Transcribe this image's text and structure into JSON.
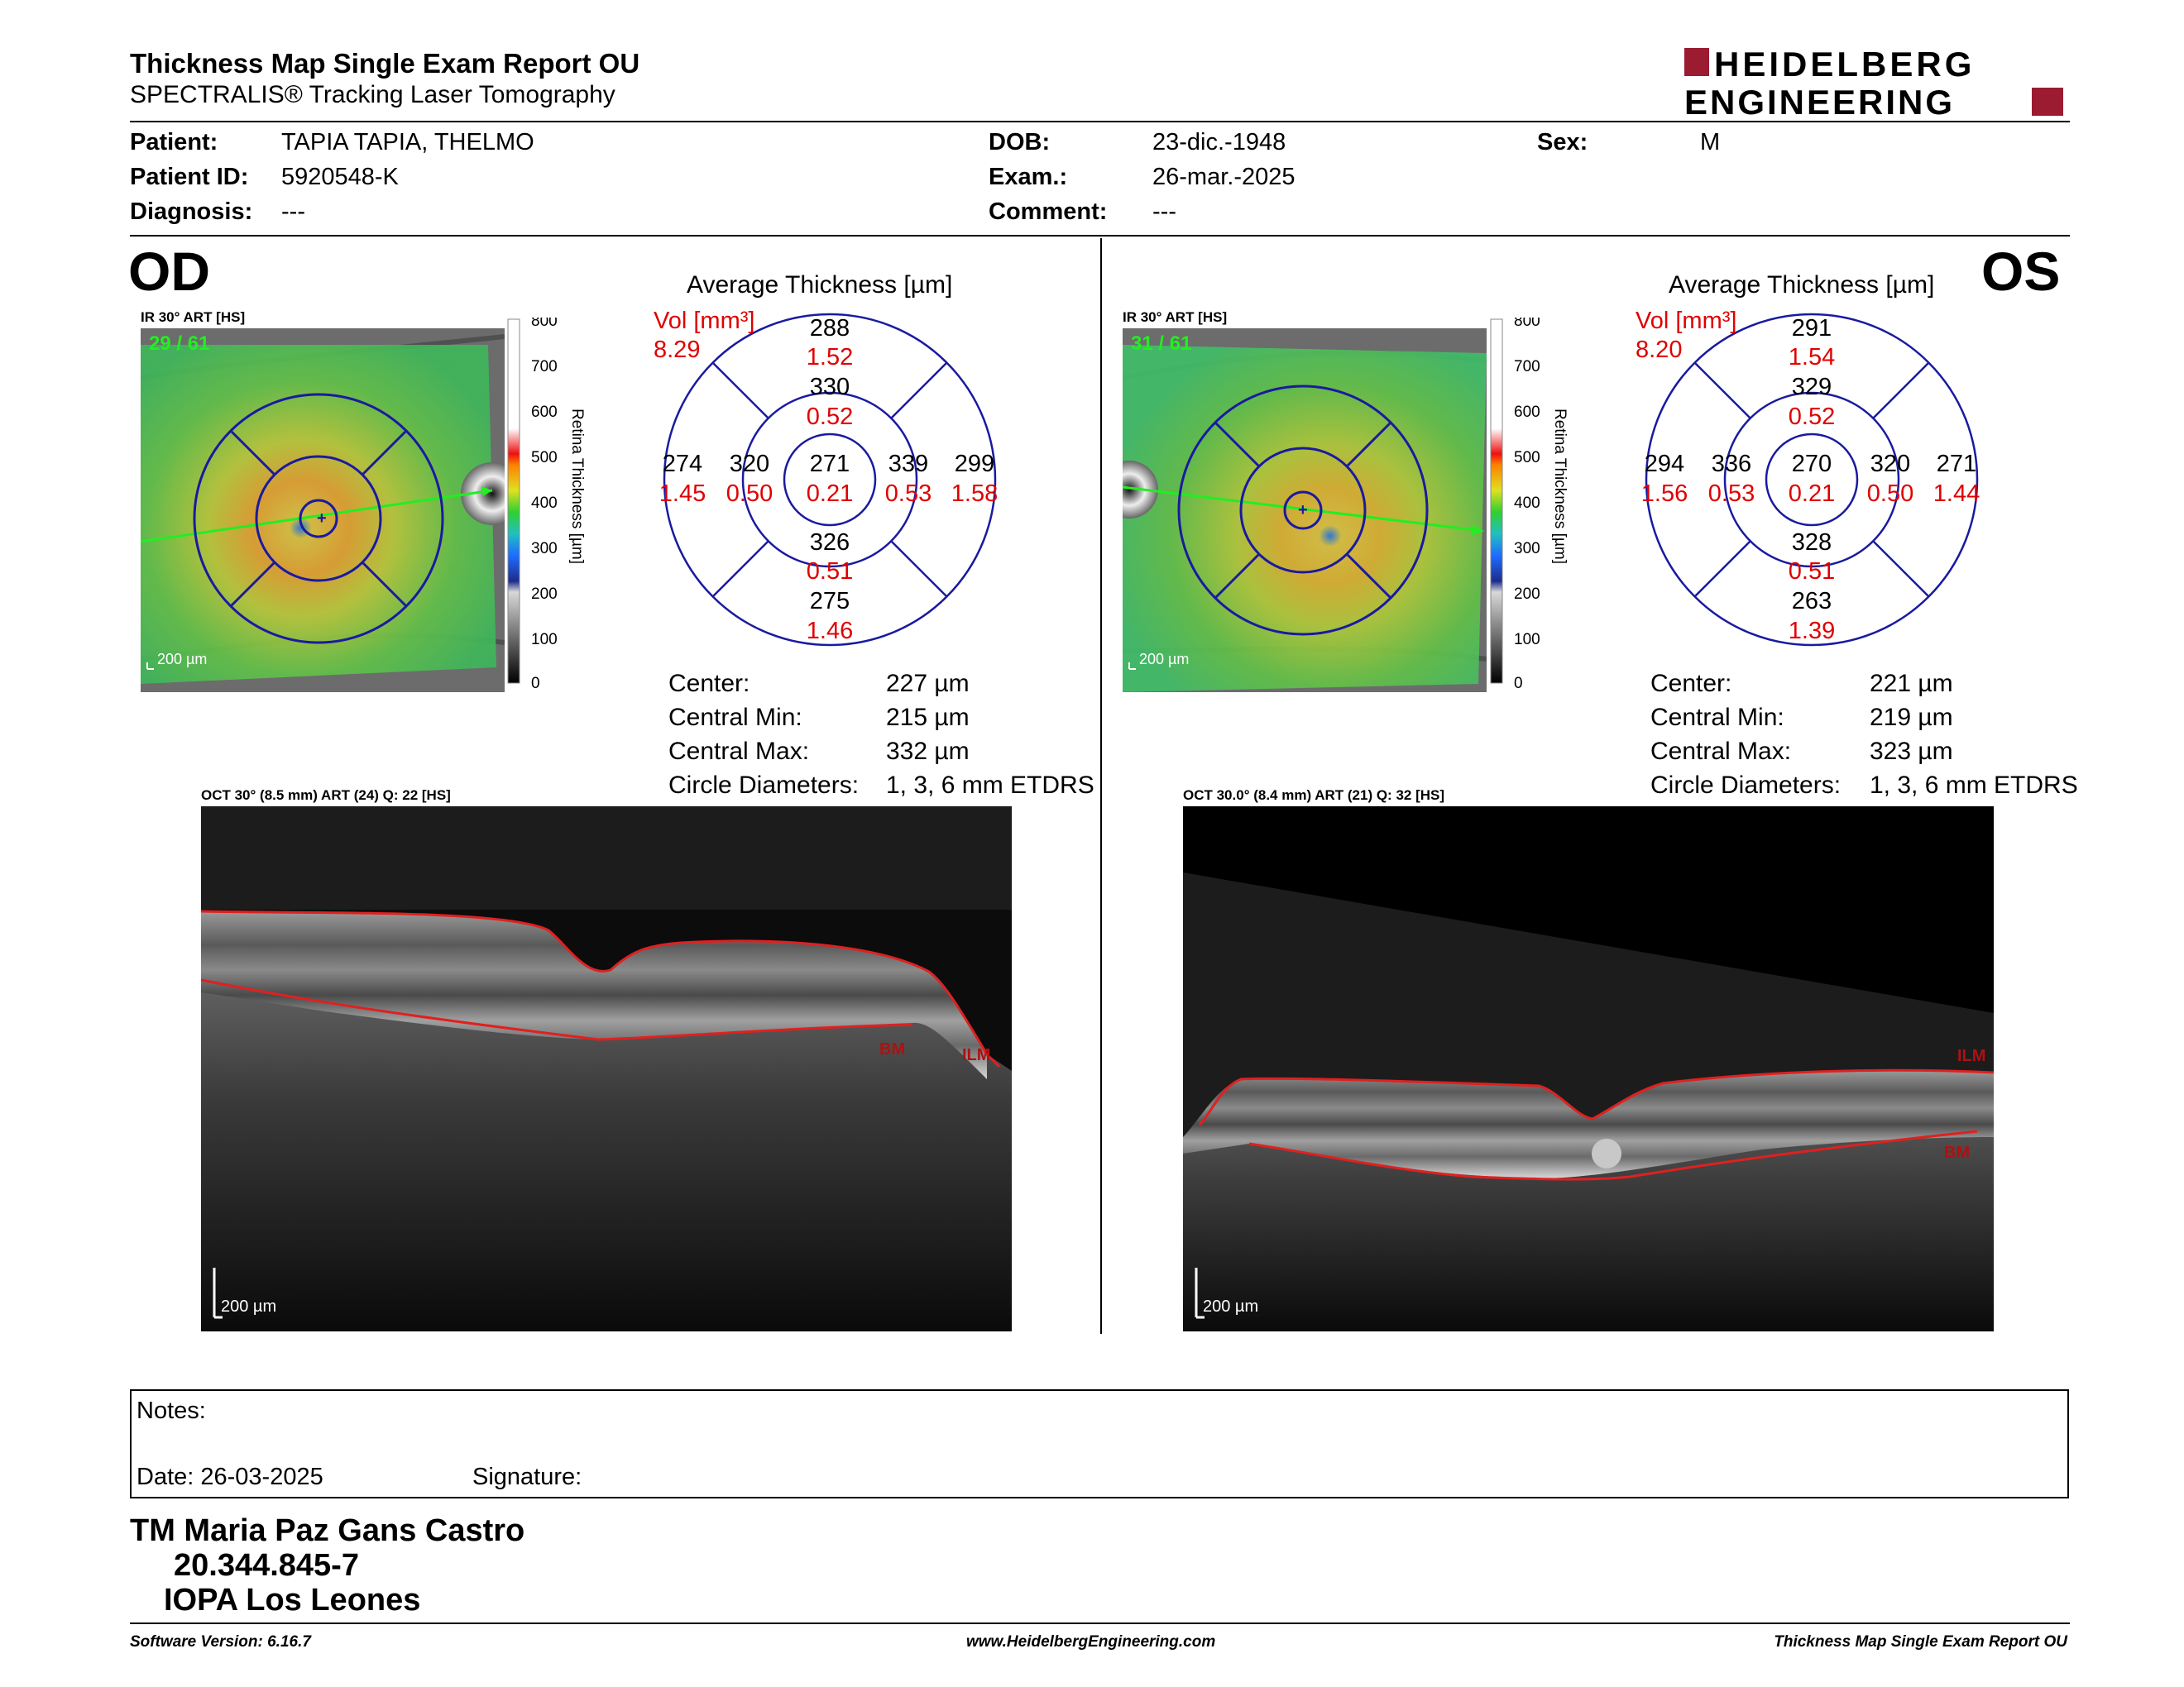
{
  "header": {
    "title": "Thickness Map Single Exam Report OU",
    "subtitle": "SPECTRALIS® Tracking Laser Tomography",
    "logo_line1": "HEIDELBERG",
    "logo_line2": "ENGINEERING"
  },
  "patient": {
    "patient_label": "Patient:",
    "patient_value": "TAPIA TAPIA, THELMO",
    "id_label": "Patient ID:",
    "id_value": "5920548-K",
    "diagnosis_label": "Diagnosis:",
    "diagnosis_value": "---",
    "dob_label": "DOB:",
    "dob_value": "23-dic.-1948",
    "exam_label": "Exam.:",
    "exam_value": "26-mar.-2025",
    "comment_label": "Comment:",
    "comment_value": "---",
    "sex_label": "Sex:",
    "sex_value": "M"
  },
  "scale": {
    "title": "Retina Thickness [µm]",
    "ticks": [
      "800",
      "700",
      "600",
      "500",
      "400",
      "300",
      "200",
      "100",
      "0"
    ]
  },
  "od": {
    "eye": "OD",
    "ir_caption": "IR 30° ART [HS]",
    "frame": "29 / 61",
    "ir_scalebar": "200 µm",
    "avg_title": "Average Thickness [µm]",
    "vol_label": "Vol [mm³]",
    "vol_value": "8.29",
    "sectors": {
      "outer_top": [
        "288",
        "1.52"
      ],
      "inner_top": [
        "330",
        "0.52"
      ],
      "outer_left": [
        "274",
        "1.45"
      ],
      "inner_left": [
        "320",
        "0.50"
      ],
      "center": [
        "271",
        "0.21"
      ],
      "inner_right": [
        "339",
        "0.53"
      ],
      "outer_right": [
        "299",
        "1.58"
      ],
      "inner_bottom": [
        "326",
        "0.51"
      ],
      "outer_bottom": [
        "275",
        "1.46"
      ]
    },
    "stats": [
      [
        "Center:",
        "227 µm"
      ],
      [
        "Central Min:",
        "215 µm"
      ],
      [
        "Central Max:",
        "332 µm"
      ],
      [
        "Circle Diameters:",
        "1, 3, 6 mm ETDRS"
      ]
    ],
    "oct_caption": "OCT 30° (8.5 mm) ART (24) Q: 22 [HS]",
    "oct_scalebar": "200 µm",
    "bm_label": "BM",
    "ilm_label": "ILM"
  },
  "os": {
    "eye": "OS",
    "ir_caption": "IR 30° ART [HS]",
    "frame": "31 / 61",
    "ir_scalebar": "200 µm",
    "avg_title": "Average Thickness [µm]",
    "vol_label": "Vol [mm³]",
    "vol_value": "8.20",
    "sectors": {
      "outer_top": [
        "291",
        "1.54"
      ],
      "inner_top": [
        "329",
        "0.52"
      ],
      "outer_left": [
        "294",
        "1.56"
      ],
      "inner_left": [
        "336",
        "0.53"
      ],
      "center": [
        "270",
        "0.21"
      ],
      "inner_right": [
        "320",
        "0.50"
      ],
      "outer_right": [
        "271",
        "1.44"
      ],
      "inner_bottom": [
        "328",
        "0.51"
      ],
      "outer_bottom": [
        "263",
        "1.39"
      ]
    },
    "stats": [
      [
        "Center:",
        "221 µm"
      ],
      [
        "Central Min:",
        "219 µm"
      ],
      [
        "Central Max:",
        "323 µm"
      ],
      [
        "Circle Diameters:",
        "1, 3, 6 mm ETDRS"
      ]
    ],
    "oct_caption": "OCT 30.0° (8.4 mm) ART (21) Q: 32 [HS]",
    "oct_scalebar": "200 µm",
    "bm_label": "BM",
    "ilm_label": "ILM"
  },
  "notes": {
    "notes_label": "Notes:",
    "date_label": "Date: 26-03-2025",
    "signature_label": "Signature:"
  },
  "signature": {
    "line1": "TM Maria Paz Gans Castro",
    "line2": "20.344.845-7",
    "line3": "IOPA Los Leones"
  },
  "footer": {
    "left": "Software Version: 6.16.7",
    "center": "www.HeidelbergEngineering.com",
    "right": "Thickness Map Single Exam Report OU"
  },
  "colors": {
    "etdrs_grid": "#1a1aa0",
    "volume_red": "#e00000",
    "bm_ilm_line": "#e02020",
    "logo_red": "#9b1b30"
  }
}
